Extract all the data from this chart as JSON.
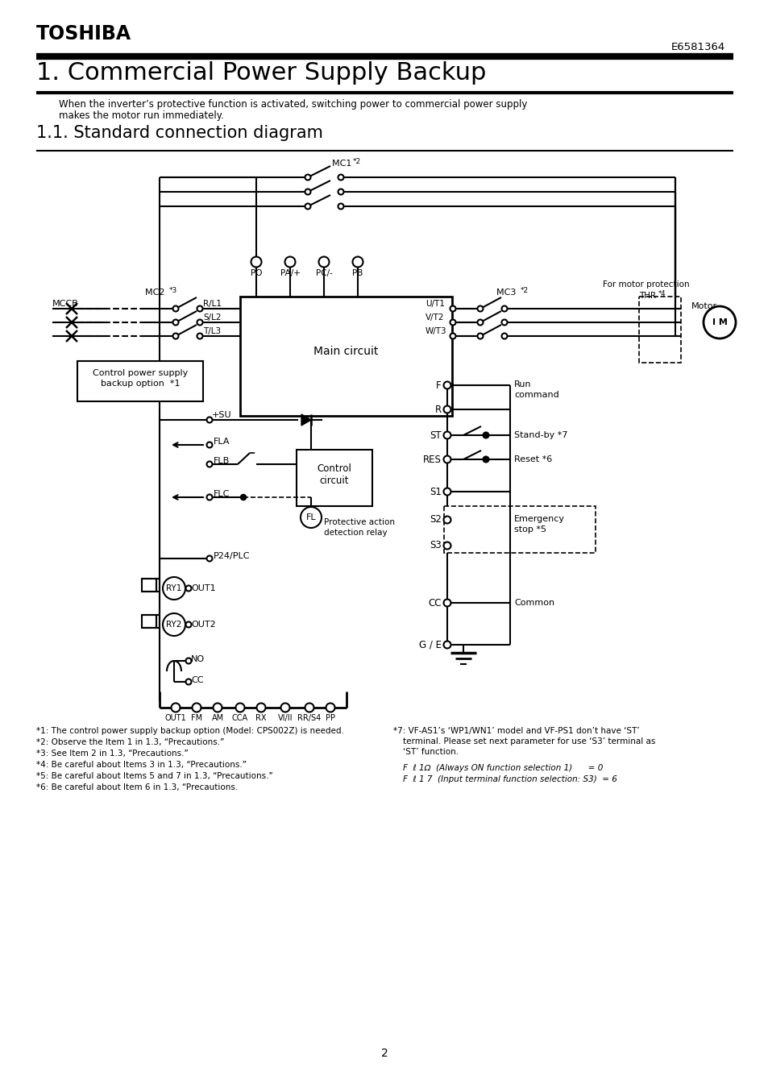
{
  "brand": "TOSHIBA",
  "doc_number": "E6581364",
  "title": "1. Commercial Power Supply Backup",
  "subtitle": "1.1. Standard connection diagram",
  "description_1": "When the inverter’s protective function is activated, switching power to commercial power supply",
  "description_2": "makes the motor run immediately.",
  "page_number": "2",
  "bg_color": "#ffffff",
  "footnotes_left": [
    "*1: The control power supply backup option (Model: CPS002Z) is needed.",
    "*2: Observe the Item 1 in 1.3, “Precautions.”",
    "*3: See Item 2 in 1.3, “Precautions.”",
    "*4: Be careful about Items 3 in 1.3, “Precautions.”",
    "*5: Be careful about Items 5 and 7 in 1.3, “Precautions.”",
    "*6: Be careful about Item 6 in 1.3, “Precautions."
  ],
  "footnote_r1": "*7: VF-AS1’s ‘WP1/WN1’ model and VF-PS1 don’t have ‘ST’",
  "footnote_r2": "terminal. Please set next parameter for use ‘S3’ terminal as",
  "footnote_r3": "‘ST’ function.",
  "footnote_r4": "F  ℓ 1Ω  (Always ON function selection 1)      = 0",
  "footnote_r5": "F  ℓ 1 7  (Input terminal function selection: S3)  = 6"
}
